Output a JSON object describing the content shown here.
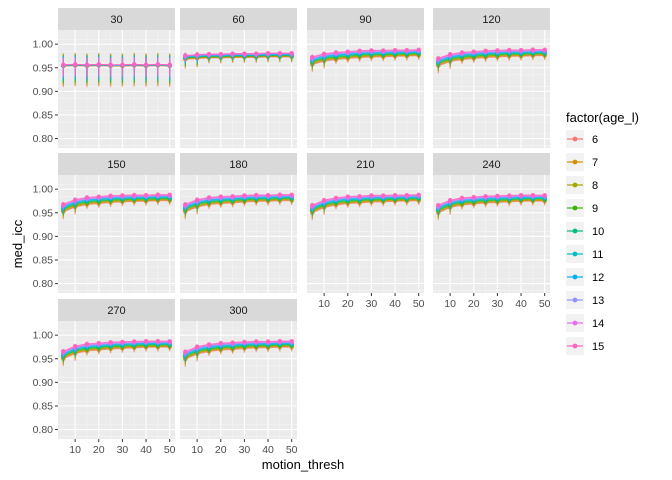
{
  "chart_data": {
    "type": "line",
    "facet_variable": "panels",
    "panels": [
      "30",
      "60",
      "90",
      "120",
      "150",
      "180",
      "210",
      "240",
      "270",
      "300"
    ],
    "x": [
      5,
      10,
      15,
      20,
      25,
      30,
      35,
      40,
      45,
      50
    ],
    "x_ticks": [
      10,
      20,
      30,
      40,
      50
    ],
    "xlim": [
      2.75,
      52.25
    ],
    "ylim": [
      0.78,
      1.03
    ],
    "y_ticks": [
      0.8,
      0.85,
      0.9,
      0.95,
      1.0
    ],
    "y_tick_labels": [
      "0.80",
      "0.85",
      "0.90",
      "0.95",
      "1.00"
    ],
    "xlabel": "motion_thresh",
    "ylabel": "med_icc",
    "legend_title": "factor(age_l)",
    "legend_position": "right",
    "grid": true,
    "series": [
      {
        "name": "6",
        "color": "#F8766D"
      },
      {
        "name": "7",
        "color": "#D89000"
      },
      {
        "name": "8",
        "color": "#A3A500"
      },
      {
        "name": "9",
        "color": "#39B600"
      },
      {
        "name": "10",
        "color": "#00BF7D"
      },
      {
        "name": "11",
        "color": "#00BFC4"
      },
      {
        "name": "12",
        "color": "#00B0F6"
      },
      {
        "name": "13",
        "color": "#9590FF"
      },
      {
        "name": "14",
        "color": "#E76BF3"
      },
      {
        "name": "15",
        "color": "#FF62BC"
      }
    ],
    "panel_values": {
      "30": {
        "base": [
          0.955,
          0.956,
          0.955,
          0.956,
          0.955,
          0.955,
          0.956,
          0.955,
          0.956,
          0.955
        ],
        "spread": 0.004,
        "err": 0.045
      },
      "60": {
        "base": [
          0.972,
          0.974,
          0.975,
          0.975,
          0.976,
          0.976,
          0.976,
          0.977,
          0.977,
          0.977
        ],
        "spread": 0.004,
        "err": 0.02
      },
      "90": {
        "base": [
          0.965,
          0.972,
          0.975,
          0.977,
          0.979,
          0.98,
          0.98,
          0.981,
          0.981,
          0.982
        ],
        "spread": 0.006,
        "err": 0.016
      },
      "120": {
        "base": [
          0.962,
          0.971,
          0.975,
          0.977,
          0.979,
          0.98,
          0.981,
          0.981,
          0.982,
          0.982
        ],
        "spread": 0.006,
        "err": 0.016
      },
      "150": {
        "base": [
          0.96,
          0.97,
          0.975,
          0.977,
          0.979,
          0.98,
          0.981,
          0.981,
          0.982,
          0.982
        ],
        "spread": 0.006,
        "err": 0.016
      },
      "180": {
        "base": [
          0.96,
          0.97,
          0.975,
          0.977,
          0.978,
          0.98,
          0.981,
          0.981,
          0.982,
          0.982
        ],
        "spread": 0.006,
        "err": 0.016
      },
      "210": {
        "base": [
          0.958,
          0.969,
          0.974,
          0.977,
          0.978,
          0.98,
          0.98,
          0.981,
          0.981,
          0.982
        ],
        "spread": 0.006,
        "err": 0.016
      },
      "240": {
        "base": [
          0.958,
          0.969,
          0.974,
          0.976,
          0.978,
          0.979,
          0.98,
          0.981,
          0.981,
          0.981
        ],
        "spread": 0.006,
        "err": 0.016
      },
      "270": {
        "base": [
          0.958,
          0.969,
          0.974,
          0.976,
          0.978,
          0.979,
          0.98,
          0.981,
          0.981,
          0.981
        ],
        "spread": 0.006,
        "err": 0.016
      },
      "300": {
        "base": [
          0.957,
          0.968,
          0.973,
          0.976,
          0.977,
          0.979,
          0.98,
          0.98,
          0.981,
          0.981
        ],
        "spread": 0.006,
        "err": 0.016
      }
    }
  }
}
